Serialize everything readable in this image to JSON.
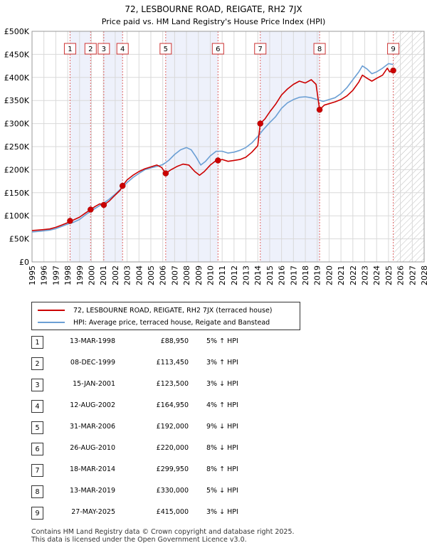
{
  "title_line1": "72, LESBOURNE ROAD, REIGATE, RH2 7JX",
  "title_line2": "Price paid vs. HM Land Registry's House Price Index (HPI)",
  "chart_data": {
    "type": "line",
    "xlim": [
      1995,
      2028
    ],
    "ylim": [
      0,
      500000
    ],
    "y_ticks": [
      {
        "value": 0,
        "label": "£0"
      },
      {
        "value": 50000,
        "label": "£50K"
      },
      {
        "value": 100000,
        "label": "£100K"
      },
      {
        "value": 150000,
        "label": "£150K"
      },
      {
        "value": 200000,
        "label": "£200K"
      },
      {
        "value": 250000,
        "label": "£250K"
      },
      {
        "value": 300000,
        "label": "£300K"
      },
      {
        "value": 350000,
        "label": "£350K"
      },
      {
        "value": 400000,
        "label": "£400K"
      },
      {
        "value": 450000,
        "label": "£450K"
      },
      {
        "value": 500000,
        "label": "£500K"
      }
    ],
    "x_ticks": [
      "1995",
      "1996",
      "1997",
      "1998",
      "1999",
      "2000",
      "2001",
      "2002",
      "2003",
      "2004",
      "2005",
      "2006",
      "2007",
      "2008",
      "2009",
      "2010",
      "2011",
      "2012",
      "2013",
      "2014",
      "2015",
      "2016",
      "2017",
      "2018",
      "2019",
      "2020",
      "2021",
      "2022",
      "2023",
      "2024",
      "2025",
      "2026",
      "2027",
      "2028"
    ],
    "forecast_start": 2025.4,
    "series": [
      {
        "name": "72, LESBOURNE ROAD, REIGATE, RH2 7JX (terraced house)",
        "color": "#cc0000",
        "points": [
          [
            1995.0,
            68000
          ],
          [
            1995.5,
            69000
          ],
          [
            1996.0,
            70000
          ],
          [
            1996.5,
            71500
          ],
          [
            1997.0,
            75000
          ],
          [
            1997.5,
            80000
          ],
          [
            1998.0,
            85000
          ],
          [
            1998.2,
            88950
          ],
          [
            1998.5,
            91000
          ],
          [
            1999.0,
            97000
          ],
          [
            1999.5,
            106000
          ],
          [
            1999.93,
            113450
          ],
          [
            2000.3,
            120000
          ],
          [
            2000.7,
            126000
          ],
          [
            2001.04,
            123500
          ],
          [
            2001.5,
            132000
          ],
          [
            2002.0,
            145000
          ],
          [
            2002.4,
            155000
          ],
          [
            2002.62,
            164950
          ],
          [
            2003.0,
            178000
          ],
          [
            2003.5,
            188000
          ],
          [
            2004.0,
            196000
          ],
          [
            2004.5,
            202000
          ],
          [
            2005.0,
            206000
          ],
          [
            2005.5,
            210000
          ],
          [
            2005.9,
            205000
          ],
          [
            2006.25,
            192000
          ],
          [
            2006.7,
            200000
          ],
          [
            2007.2,
            207000
          ],
          [
            2007.7,
            212000
          ],
          [
            2008.2,
            210000
          ],
          [
            2008.7,
            196000
          ],
          [
            2009.1,
            188000
          ],
          [
            2009.5,
            196000
          ],
          [
            2010.0,
            210000
          ],
          [
            2010.4,
            218000
          ],
          [
            2010.65,
            220000
          ],
          [
            2011.0,
            222000
          ],
          [
            2011.5,
            218000
          ],
          [
            2012.0,
            220000
          ],
          [
            2012.5,
            222000
          ],
          [
            2013.0,
            227000
          ],
          [
            2013.5,
            238000
          ],
          [
            2014.0,
            252000
          ],
          [
            2014.21,
            299950
          ],
          [
            2014.6,
            310000
          ],
          [
            2015.0,
            325000
          ],
          [
            2015.5,
            342000
          ],
          [
            2016.0,
            362000
          ],
          [
            2016.5,
            375000
          ],
          [
            2017.0,
            385000
          ],
          [
            2017.5,
            392000
          ],
          [
            2018.0,
            388000
          ],
          [
            2018.5,
            395000
          ],
          [
            2018.9,
            385000
          ],
          [
            2019.2,
            330000
          ],
          [
            2019.6,
            340000
          ],
          [
            2020.0,
            343000
          ],
          [
            2020.5,
            347000
          ],
          [
            2021.0,
            352000
          ],
          [
            2021.5,
            360000
          ],
          [
            2022.0,
            372000
          ],
          [
            2022.5,
            390000
          ],
          [
            2022.8,
            405000
          ],
          [
            2023.2,
            398000
          ],
          [
            2023.6,
            392000
          ],
          [
            2024.0,
            398000
          ],
          [
            2024.5,
            405000
          ],
          [
            2024.9,
            420000
          ],
          [
            2025.1,
            412000
          ],
          [
            2025.4,
            415000
          ]
        ]
      },
      {
        "name": "HPI: Average price, terraced house, Reigate and Banstead",
        "color": "#6b9fd4",
        "points": [
          [
            1995.0,
            65000
          ],
          [
            1995.5,
            66000
          ],
          [
            1996.0,
            67500
          ],
          [
            1996.5,
            69000
          ],
          [
            1997.0,
            72000
          ],
          [
            1997.5,
            77000
          ],
          [
            1998.0,
            82000
          ],
          [
            1998.5,
            86000
          ],
          [
            1999.0,
            92000
          ],
          [
            1999.5,
            102000
          ],
          [
            2000.0,
            111000
          ],
          [
            2000.5,
            119000
          ],
          [
            2001.0,
            127000
          ],
          [
            2001.5,
            136000
          ],
          [
            2002.0,
            147000
          ],
          [
            2002.5,
            159000
          ],
          [
            2003.0,
            172000
          ],
          [
            2003.5,
            183000
          ],
          [
            2004.0,
            192000
          ],
          [
            2004.5,
            200000
          ],
          [
            2005.0,
            204000
          ],
          [
            2005.5,
            207000
          ],
          [
            2006.0,
            211000
          ],
          [
            2006.5,
            220000
          ],
          [
            2007.0,
            233000
          ],
          [
            2007.5,
            243000
          ],
          [
            2008.0,
            248000
          ],
          [
            2008.4,
            243000
          ],
          [
            2008.8,
            228000
          ],
          [
            2009.2,
            210000
          ],
          [
            2009.6,
            218000
          ],
          [
            2010.0,
            230000
          ],
          [
            2010.5,
            240000
          ],
          [
            2011.0,
            240000
          ],
          [
            2011.5,
            236000
          ],
          [
            2012.0,
            238000
          ],
          [
            2012.5,
            242000
          ],
          [
            2013.0,
            248000
          ],
          [
            2013.5,
            258000
          ],
          [
            2014.0,
            272000
          ],
          [
            2014.5,
            288000
          ],
          [
            2015.0,
            302000
          ],
          [
            2015.5,
            315000
          ],
          [
            2016.0,
            333000
          ],
          [
            2016.5,
            345000
          ],
          [
            2017.0,
            352000
          ],
          [
            2017.5,
            357000
          ],
          [
            2018.0,
            358000
          ],
          [
            2018.5,
            356000
          ],
          [
            2019.0,
            352000
          ],
          [
            2019.5,
            348000
          ],
          [
            2020.0,
            352000
          ],
          [
            2020.5,
            356000
          ],
          [
            2021.0,
            365000
          ],
          [
            2021.5,
            378000
          ],
          [
            2022.0,
            395000
          ],
          [
            2022.5,
            412000
          ],
          [
            2022.8,
            425000
          ],
          [
            2023.2,
            418000
          ],
          [
            2023.6,
            408000
          ],
          [
            2024.0,
            412000
          ],
          [
            2024.5,
            420000
          ],
          [
            2025.0,
            430000
          ],
          [
            2025.4,
            428000
          ]
        ]
      }
    ],
    "sales": [
      {
        "n": "1",
        "x": 1998.2,
        "price": 88950,
        "date": "13-MAR-1998",
        "price_label": "£88,950",
        "hpi": "5% ↑ HPI"
      },
      {
        "n": "2",
        "x": 1999.93,
        "price": 113450,
        "date": "08-DEC-1999",
        "price_label": "£113,450",
        "hpi": "3% ↑ HPI"
      },
      {
        "n": "3",
        "x": 2001.04,
        "price": 123500,
        "date": "15-JAN-2001",
        "price_label": "£123,500",
        "hpi": "3% ↓ HPI"
      },
      {
        "n": "4",
        "x": 2002.62,
        "price": 164950,
        "date": "12-AUG-2002",
        "price_label": "£164,950",
        "hpi": "4% ↑ HPI"
      },
      {
        "n": "5",
        "x": 2006.25,
        "price": 192000,
        "date": "31-MAR-2006",
        "price_label": "£192,000",
        "hpi": "9% ↓ HPI"
      },
      {
        "n": "6",
        "x": 2010.65,
        "price": 220000,
        "date": "26-AUG-2010",
        "price_label": "£220,000",
        "hpi": "8% ↓ HPI"
      },
      {
        "n": "7",
        "x": 2014.21,
        "price": 299950,
        "date": "18-MAR-2014",
        "price_label": "£299,950",
        "hpi": "8% ↑ HPI"
      },
      {
        "n": "8",
        "x": 2019.2,
        "price": 330000,
        "date": "13-MAR-2019",
        "price_label": "£330,000",
        "hpi": "5% ↓ HPI"
      },
      {
        "n": "9",
        "x": 2025.4,
        "price": 415000,
        "date": "27-MAY-2025",
        "price_label": "£415,000",
        "hpi": "3% ↓ HPI"
      }
    ],
    "shaded_pairs": [
      [
        1,
        2
      ],
      [
        3,
        4
      ],
      [
        5,
        6
      ],
      [
        7,
        8
      ]
    ]
  },
  "legend": {
    "property_label": "72, LESBOURNE ROAD, REIGATE, RH2 7JX (terraced house)",
    "hpi_label": "HPI: Average price, terraced house, Reigate and Banstead",
    "property_color": "#cc0000",
    "hpi_color": "#6b9fd4"
  },
  "footer": {
    "line1": "Contains HM Land Registry data © Crown copyright and database right 2025.",
    "line2": "This data is licensed under the Open Government Licence v3.0."
  }
}
